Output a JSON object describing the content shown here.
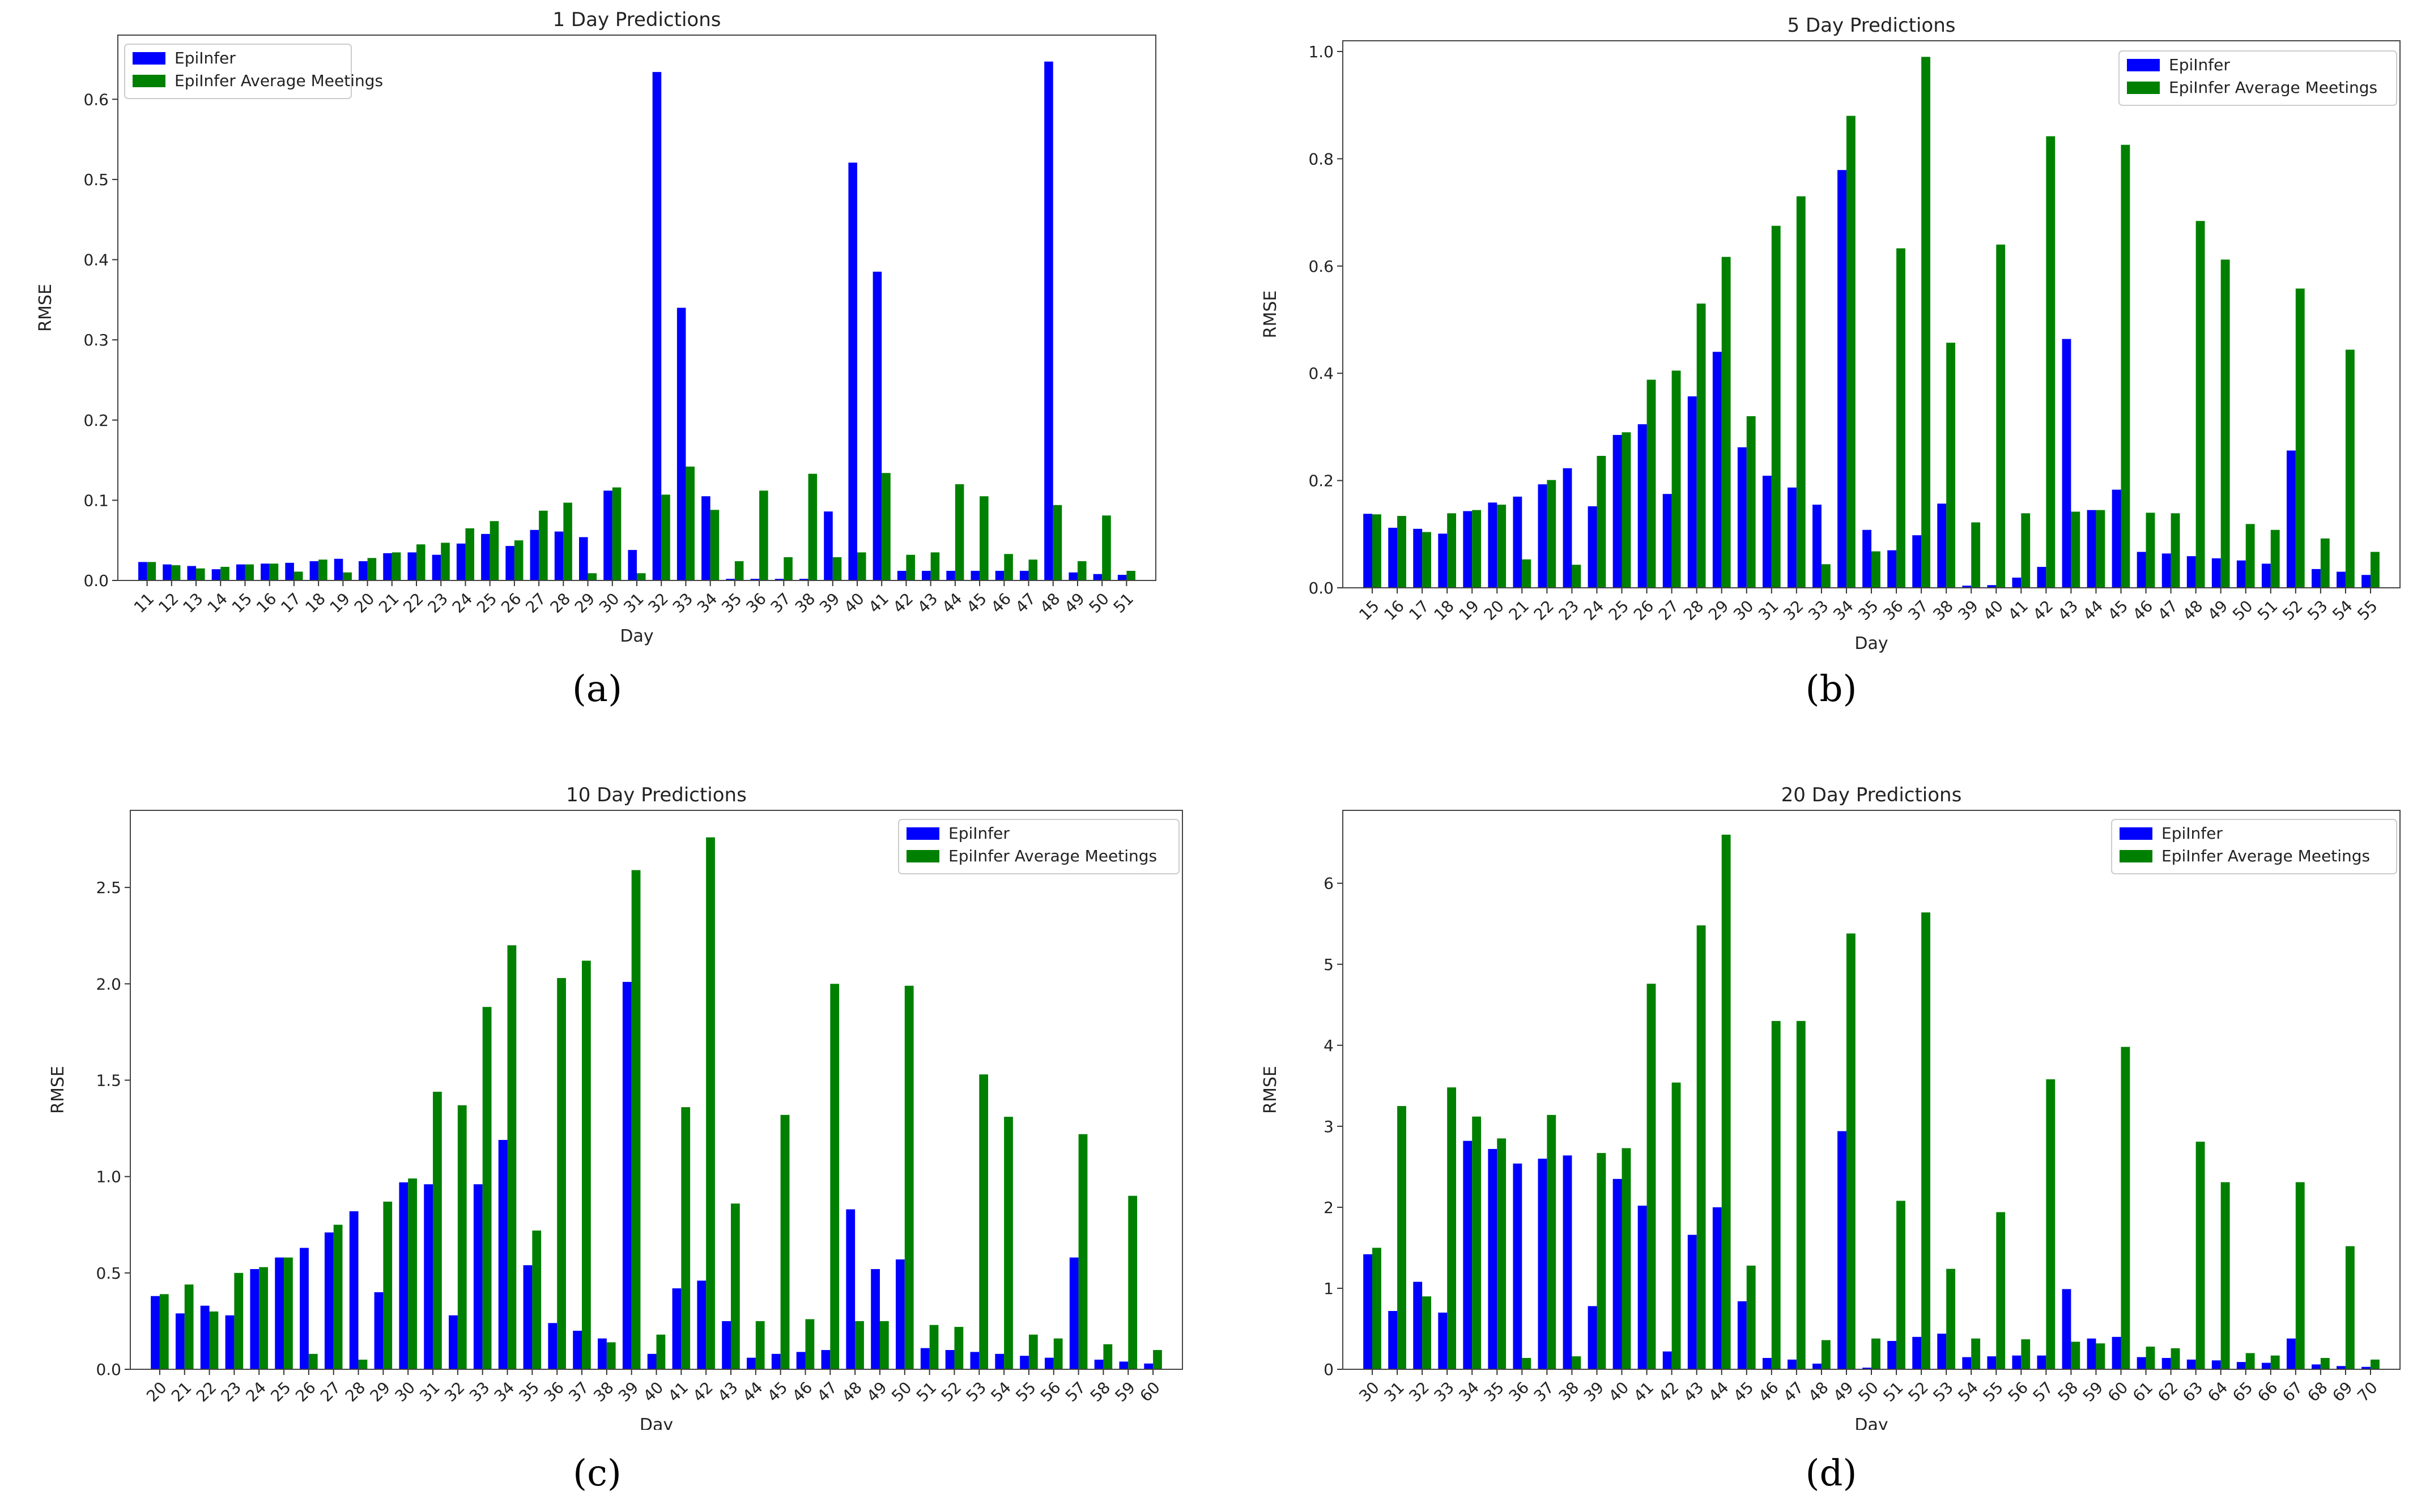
{
  "colors": {
    "epiinfer": "#0000ff",
    "average": "#008000"
  },
  "chart_data": [
    {
      "type": "bar",
      "title": "1 Day Predictions",
      "caption": "(a)",
      "xlabel": "Day",
      "ylabel": "RMSE",
      "legend_position": "top-left",
      "ylim": [
        0,
        0.68
      ],
      "yticks": [
        0.0,
        0.1,
        0.2,
        0.3,
        0.4,
        0.5,
        0.6
      ],
      "ytick_labels": [
        "0.0",
        "0.1",
        "0.2",
        "0.3",
        "0.4",
        "0.5",
        "0.6"
      ],
      "categories": [
        "11",
        "12",
        "13",
        "14",
        "15",
        "16",
        "17",
        "18",
        "19",
        "20",
        "21",
        "22",
        "23",
        "24",
        "25",
        "26",
        "27",
        "28",
        "29",
        "30",
        "31",
        "32",
        "33",
        "34",
        "35",
        "36",
        "37",
        "38",
        "39",
        "40",
        "41",
        "42",
        "43",
        "44",
        "45",
        "46",
        "47",
        "48",
        "49",
        "50",
        "51"
      ],
      "series": [
        {
          "name": "EpiInfer",
          "values": [
            0.023,
            0.02,
            0.018,
            0.014,
            0.02,
            0.021,
            0.022,
            0.024,
            0.027,
            0.024,
            0.034,
            0.035,
            0.032,
            0.046,
            0.058,
            0.043,
            0.063,
            0.061,
            0.054,
            0.112,
            0.038,
            0.634,
            0.34,
            0.105,
            0.002,
            0.002,
            0.002,
            0.002,
            0.086,
            0.521,
            0.385,
            0.012,
            0.012,
            0.012,
            0.012,
            0.012,
            0.012,
            0.647,
            0.01,
            0.008,
            0.007
          ]
        },
        {
          "name": "EpiInfer Average Meetings",
          "values": [
            0.023,
            0.019,
            0.015,
            0.017,
            0.02,
            0.021,
            0.011,
            0.026,
            0.01,
            0.028,
            0.035,
            0.045,
            0.047,
            0.065,
            0.074,
            0.05,
            0.087,
            0.097,
            0.009,
            0.116,
            0.009,
            0.107,
            0.142,
            0.088,
            0.024,
            0.112,
            0.029,
            0.133,
            0.029,
            0.035,
            0.134,
            0.032,
            0.035,
            0.12,
            0.105,
            0.033,
            0.026,
            0.094,
            0.024,
            0.081,
            0.012
          ]
        }
      ]
    },
    {
      "type": "bar",
      "title": "5 Day Predictions",
      "caption": "(b)",
      "xlabel": "Day",
      "ylabel": "RMSE",
      "legend_position": "top-right",
      "ylim": [
        0,
        1.02
      ],
      "yticks": [
        0.0,
        0.2,
        0.4,
        0.6,
        0.8,
        1.0
      ],
      "ytick_labels": [
        "0.0",
        "0.2",
        "0.4",
        "0.6",
        "0.8",
        "1.0"
      ],
      "categories": [
        "15",
        "16",
        "17",
        "18",
        "19",
        "20",
        "21",
        "22",
        "23",
        "24",
        "25",
        "26",
        "27",
        "28",
        "29",
        "30",
        "31",
        "32",
        "33",
        "34",
        "35",
        "36",
        "37",
        "38",
        "39",
        "40",
        "41",
        "42",
        "43",
        "44",
        "45",
        "46",
        "47",
        "48",
        "49",
        "50",
        "51",
        "52",
        "53",
        "54",
        "55"
      ],
      "series": [
        {
          "name": "EpiInfer",
          "values": [
            0.138,
            0.112,
            0.11,
            0.101,
            0.143,
            0.159,
            0.17,
            0.193,
            0.223,
            0.152,
            0.285,
            0.305,
            0.175,
            0.357,
            0.44,
            0.262,
            0.209,
            0.187,
            0.155,
            0.779,
            0.108,
            0.07,
            0.098,
            0.157,
            0.004,
            0.005,
            0.019,
            0.039,
            0.464,
            0.145,
            0.183,
            0.067,
            0.064,
            0.059,
            0.055,
            0.051,
            0.045,
            0.256,
            0.035,
            0.03,
            0.024
          ]
        },
        {
          "name": "EpiInfer Average Meetings",
          "values": [
            0.137,
            0.134,
            0.104,
            0.139,
            0.145,
            0.155,
            0.053,
            0.201,
            0.043,
            0.246,
            0.29,
            0.388,
            0.405,
            0.53,
            0.617,
            0.32,
            0.675,
            0.73,
            0.044,
            0.88,
            0.068,
            0.633,
            0.99,
            0.457,
            0.122,
            0.64,
            0.139,
            0.842,
            0.142,
            0.145,
            0.826,
            0.14,
            0.139,
            0.684,
            0.612,
            0.119,
            0.108,
            0.558,
            0.092,
            0.444,
            0.067
          ]
        }
      ]
    },
    {
      "type": "bar",
      "title": "10 Day Predictions",
      "caption": "(c)",
      "xlabel": "Day",
      "ylabel": "RMSE",
      "legend_position": "top-right",
      "ylim": [
        0,
        2.9
      ],
      "yticks": [
        0.0,
        0.5,
        1.0,
        1.5,
        2.0,
        2.5
      ],
      "ytick_labels": [
        "0.0",
        "0.5",
        "1.0",
        "1.5",
        "2.0",
        "2.5"
      ],
      "categories": [
        "20",
        "21",
        "22",
        "23",
        "24",
        "25",
        "26",
        "27",
        "28",
        "29",
        "30",
        "31",
        "32",
        "33",
        "34",
        "35",
        "36",
        "37",
        "38",
        "39",
        "40",
        "41",
        "42",
        "43",
        "44",
        "45",
        "46",
        "47",
        "48",
        "49",
        "50",
        "51",
        "52",
        "53",
        "54",
        "55",
        "56",
        "57",
        "58",
        "59",
        "60"
      ],
      "series": [
        {
          "name": "EpiInfer",
          "values": [
            0.38,
            0.29,
            0.33,
            0.28,
            0.52,
            0.58,
            0.63,
            0.71,
            0.82,
            0.4,
            0.97,
            0.96,
            0.28,
            0.96,
            1.19,
            0.54,
            0.24,
            0.2,
            0.16,
            2.01,
            0.08,
            0.42,
            0.46,
            0.25,
            0.06,
            0.08,
            0.09,
            0.1,
            0.83,
            0.52,
            0.57,
            0.11,
            0.1,
            0.09,
            0.08,
            0.07,
            0.06,
            0.58,
            0.05,
            0.04,
            0.03
          ]
        },
        {
          "name": "EpiInfer Average Meetings",
          "values": [
            0.39,
            0.44,
            0.3,
            0.5,
            0.53,
            0.58,
            0.08,
            0.75,
            0.05,
            0.87,
            0.99,
            1.44,
            1.37,
            1.88,
            2.2,
            0.72,
            2.03,
            2.12,
            0.14,
            2.59,
            0.18,
            1.36,
            2.76,
            0.86,
            0.25,
            1.32,
            0.26,
            2.0,
            0.25,
            0.25,
            1.99,
            0.23,
            0.22,
            1.53,
            1.31,
            0.18,
            0.16,
            1.22,
            0.13,
            0.9,
            0.1
          ]
        }
      ]
    },
    {
      "type": "bar",
      "title": "20 Day Predictions",
      "caption": "(d)",
      "xlabel": "Day",
      "ylabel": "RMSE",
      "legend_position": "top-right",
      "ylim": [
        0,
        6.9
      ],
      "yticks": [
        0,
        1,
        2,
        3,
        4,
        5,
        6
      ],
      "ytick_labels": [
        "0",
        "1",
        "2",
        "3",
        "4",
        "5",
        "6"
      ],
      "categories": [
        "30",
        "31",
        "32",
        "33",
        "34",
        "35",
        "36",
        "37",
        "38",
        "39",
        "40",
        "41",
        "42",
        "43",
        "44",
        "45",
        "46",
        "47",
        "48",
        "49",
        "50",
        "51",
        "52",
        "53",
        "54",
        "55",
        "56",
        "57",
        "58",
        "59",
        "60",
        "61",
        "62",
        "63",
        "64",
        "65",
        "66",
        "67",
        "68",
        "69",
        "70"
      ],
      "series": [
        {
          "name": "EpiInfer",
          "values": [
            1.42,
            0.72,
            1.08,
            0.7,
            2.82,
            2.72,
            2.54,
            2.6,
            2.64,
            0.78,
            2.35,
            2.02,
            0.22,
            1.66,
            2.0,
            0.84,
            0.14,
            0.12,
            0.07,
            2.94,
            0.02,
            0.35,
            0.4,
            0.44,
            0.15,
            0.16,
            0.17,
            0.17,
            0.99,
            0.38,
            0.4,
            0.15,
            0.14,
            0.12,
            0.11,
            0.09,
            0.08,
            0.38,
            0.06,
            0.04,
            0.03
          ]
        },
        {
          "name": "EpiInfer Average Meetings",
          "values": [
            1.5,
            3.25,
            0.9,
            3.48,
            3.12,
            2.85,
            0.14,
            3.14,
            0.16,
            2.67,
            2.73,
            4.76,
            3.54,
            5.48,
            6.6,
            1.28,
            4.3,
            4.3,
            0.36,
            5.38,
            0.38,
            2.08,
            5.64,
            1.24,
            0.38,
            1.94,
            0.37,
            3.58,
            0.34,
            0.32,
            3.98,
            0.28,
            0.26,
            2.81,
            2.31,
            0.2,
            0.17,
            2.31,
            0.14,
            1.52,
            0.12
          ]
        }
      ]
    }
  ]
}
